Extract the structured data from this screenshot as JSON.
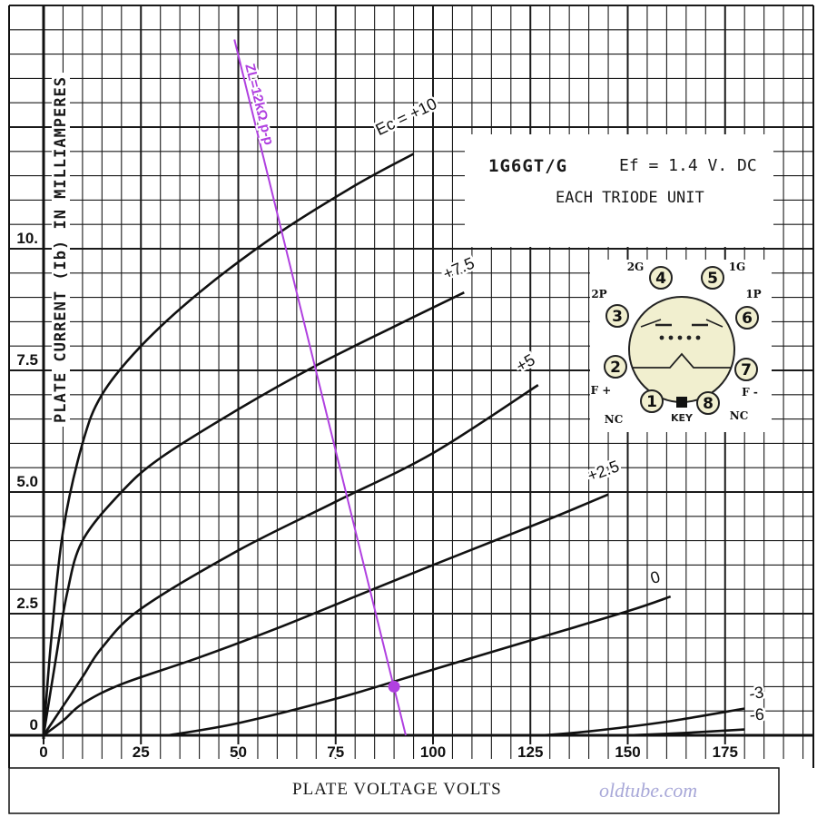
{
  "chart_data": {
    "type": "line",
    "title": "",
    "xlabel": "PLATE VOLTAGE VOLTS",
    "ylabel": "PLATE CURRENT (Ib) IN MILLIAMPERES",
    "xlim": [
      0,
      190
    ],
    "ylim": [
      0,
      15
    ],
    "x_ticks": [
      {
        "value": 0,
        "label": "0"
      },
      {
        "value": 25,
        "label": "25"
      },
      {
        "value": 50,
        "label": "50"
      },
      {
        "value": 75,
        "label": "75"
      },
      {
        "value": 100,
        "label": "100"
      },
      {
        "value": 125,
        "label": "125"
      },
      {
        "value": 150,
        "label": "150"
      },
      {
        "value": 175,
        "label": "175"
      }
    ],
    "y_ticks": [
      {
        "value": 0,
        "label": "0"
      },
      {
        "value": 2.5,
        "label": "2.5"
      },
      {
        "value": 5,
        "label": "5.0"
      },
      {
        "value": 7.5,
        "label": "7.5"
      },
      {
        "value": 10,
        "label": "10."
      }
    ],
    "grid": true,
    "series": [
      {
        "name": "Ec = +10",
        "label": "Eᴄ = +10",
        "x": [
          0,
          2,
          5,
          10,
          15,
          25,
          40,
          60,
          80,
          95
        ],
        "y": [
          0,
          2.0,
          4.2,
          6.0,
          7.0,
          8.0,
          9.1,
          10.3,
          11.3,
          11.95
        ]
      },
      {
        "name": "+7.5",
        "label": "+7.5",
        "x": [
          0,
          3,
          6,
          10,
          20,
          30,
          50,
          70,
          90,
          108
        ],
        "y": [
          0,
          1.5,
          2.9,
          4.0,
          5.0,
          5.7,
          6.7,
          7.6,
          8.4,
          9.1
        ]
      },
      {
        "name": "+5",
        "label": "+5",
        "x": [
          0,
          5,
          10,
          15,
          25,
          50,
          75,
          100,
          127
        ],
        "y": [
          0,
          0.6,
          1.2,
          1.8,
          2.6,
          3.8,
          4.8,
          5.8,
          7.2
        ]
      },
      {
        "name": "+2.5",
        "label": "+2.5",
        "x": [
          0,
          5,
          10,
          20,
          40,
          60,
          80,
          100,
          130,
          145
        ],
        "y": [
          0,
          0.3,
          0.65,
          1.05,
          1.6,
          2.2,
          2.85,
          3.5,
          4.45,
          4.95
        ]
      },
      {
        "name": "0",
        "label": "0",
        "x": [
          32,
          50,
          75,
          100,
          125,
          150,
          161
        ],
        "y": [
          0,
          0.25,
          0.75,
          1.35,
          1.95,
          2.55,
          2.85
        ]
      },
      {
        "name": "-3",
        "label": "-3",
        "x": [
          128,
          140,
          160,
          180
        ],
        "y": [
          0,
          0.08,
          0.28,
          0.55
        ]
      },
      {
        "name": "-6",
        "label": "-6",
        "x": [
          150,
          165,
          180
        ],
        "y": [
          0,
          0.05,
          0.12
        ]
      }
    ],
    "load_line": {
      "label": "ZL=12kΩ p-p",
      "color": "#b040e0",
      "x": [
        49,
        93
      ],
      "y": [
        14.3,
        0
      ]
    },
    "operating_point": {
      "x": 90,
      "y": 1.0,
      "color": "#b040e0"
    },
    "legend": "none"
  },
  "title_box": {
    "tube": "1G6GT/G",
    "heater": "Ef = 1.4 V. DC",
    "note": "EACH TRIODE UNIT"
  },
  "pinout": {
    "pins": [
      {
        "num": "1",
        "label": "NC"
      },
      {
        "num": "2",
        "label": "F +"
      },
      {
        "num": "3",
        "label": "2P"
      },
      {
        "num": "4",
        "label": "2G"
      },
      {
        "num": "5",
        "label": "1G"
      },
      {
        "num": "6",
        "label": "1P"
      },
      {
        "num": "7",
        "label": "F -"
      },
      {
        "num": "8",
        "label": "NC"
      }
    ],
    "key_label": "KEY",
    "pin_fill": "#f1efcf"
  },
  "watermark": "oldtube.com"
}
